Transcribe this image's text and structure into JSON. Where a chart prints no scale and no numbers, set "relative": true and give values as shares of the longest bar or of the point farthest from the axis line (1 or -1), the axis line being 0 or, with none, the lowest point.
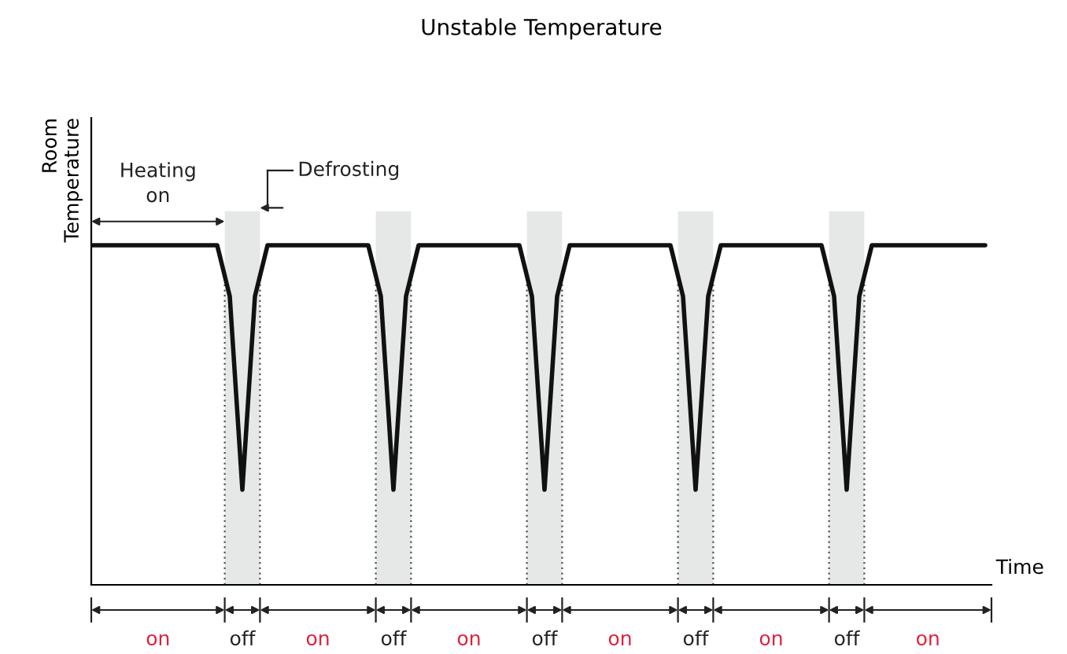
{
  "chart_data": {
    "type": "line",
    "title": "Unstable Temperature",
    "xlabel": "Time",
    "ylabel": "Room\nTemperature",
    "relative": true,
    "color": "#111111",
    "categories": [
      null,
      null,
      null,
      null,
      null,
      null,
      null,
      null,
      null,
      null,
      null,
      null,
      null,
      null,
      null,
      null,
      null,
      null,
      null,
      null,
      null,
      null,
      null,
      null,
      null,
      null,
      null,
      null,
      null,
      null,
      null,
      null,
      null,
      null,
      null,
      null,
      null,
      null,
      null,
      null,
      null,
      null,
      null,
      null,
      null,
      null,
      null,
      null,
      null,
      null,
      null,
      null,
      null,
      null,
      null,
      null,
      null,
      null,
      null,
      null,
      null,
      null,
      null,
      null,
      null,
      null,
      null,
      null,
      null,
      null,
      null,
      null
    ],
    "values": [
      1,
      1,
      1,
      1,
      1,
      1,
      1,
      1,
      1,
      1,
      1,
      0.85,
      0.28,
      0.85,
      1,
      1,
      1,
      1,
      1,
      1,
      1,
      1,
      1,
      0.85,
      0.28,
      0.85,
      1,
      1,
      1,
      1,
      1,
      1,
      1,
      1,
      1,
      0.85,
      0.28,
      0.85,
      1,
      1,
      1,
      1,
      1,
      1,
      1,
      1,
      1,
      0.85,
      0.28,
      0.85,
      1,
      1,
      1,
      1,
      1,
      1,
      1,
      1,
      1,
      0.85,
      0.28,
      0.85,
      1,
      1,
      1,
      1,
      1,
      1,
      1,
      1,
      1,
      1
    ],
    "annotations": [
      "Heating\non",
      "Defrosting",
      "on",
      "off",
      "on",
      "off",
      "on",
      "off",
      "on",
      "off",
      "on",
      "off",
      "on"
    ],
    "grid": false,
    "marker": "none",
    "line_style": "solid"
  }
}
